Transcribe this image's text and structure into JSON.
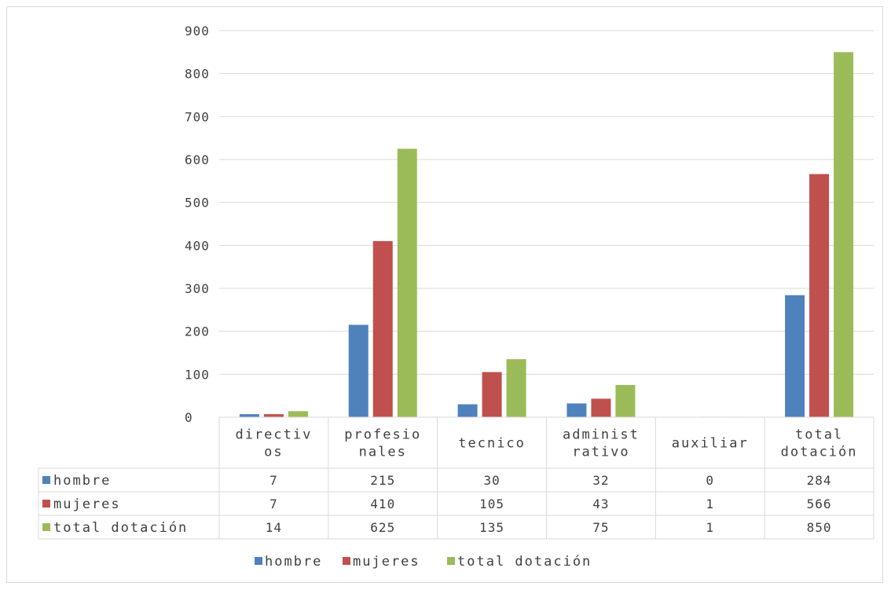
{
  "chart_data": {
    "type": "bar",
    "title": "",
    "xlabel": "",
    "ylabel": "",
    "ylim": [
      0,
      900
    ],
    "yticks": [
      0,
      100,
      200,
      300,
      400,
      500,
      600,
      700,
      800,
      900
    ],
    "grid": true,
    "legend_position": "bottom",
    "categories": [
      [
        "directiv",
        "os"
      ],
      [
        "profesio",
        "nales"
      ],
      [
        "tecnico"
      ],
      [
        "administ",
        "rativo"
      ],
      [
        "auxiliar"
      ],
      [
        "total",
        "dotación"
      ]
    ],
    "series": [
      {
        "name": "hombre",
        "color": "#4f81bd",
        "values": [
          7,
          215,
          30,
          32,
          0,
          284
        ]
      },
      {
        "name": "mujeres",
        "color": "#c0504d",
        "values": [
          7,
          410,
          105,
          43,
          1,
          566
        ]
      },
      {
        "name": "total dotación",
        "color": "#9bbb59",
        "values": [
          14,
          625,
          135,
          75,
          1,
          850
        ]
      }
    ]
  }
}
